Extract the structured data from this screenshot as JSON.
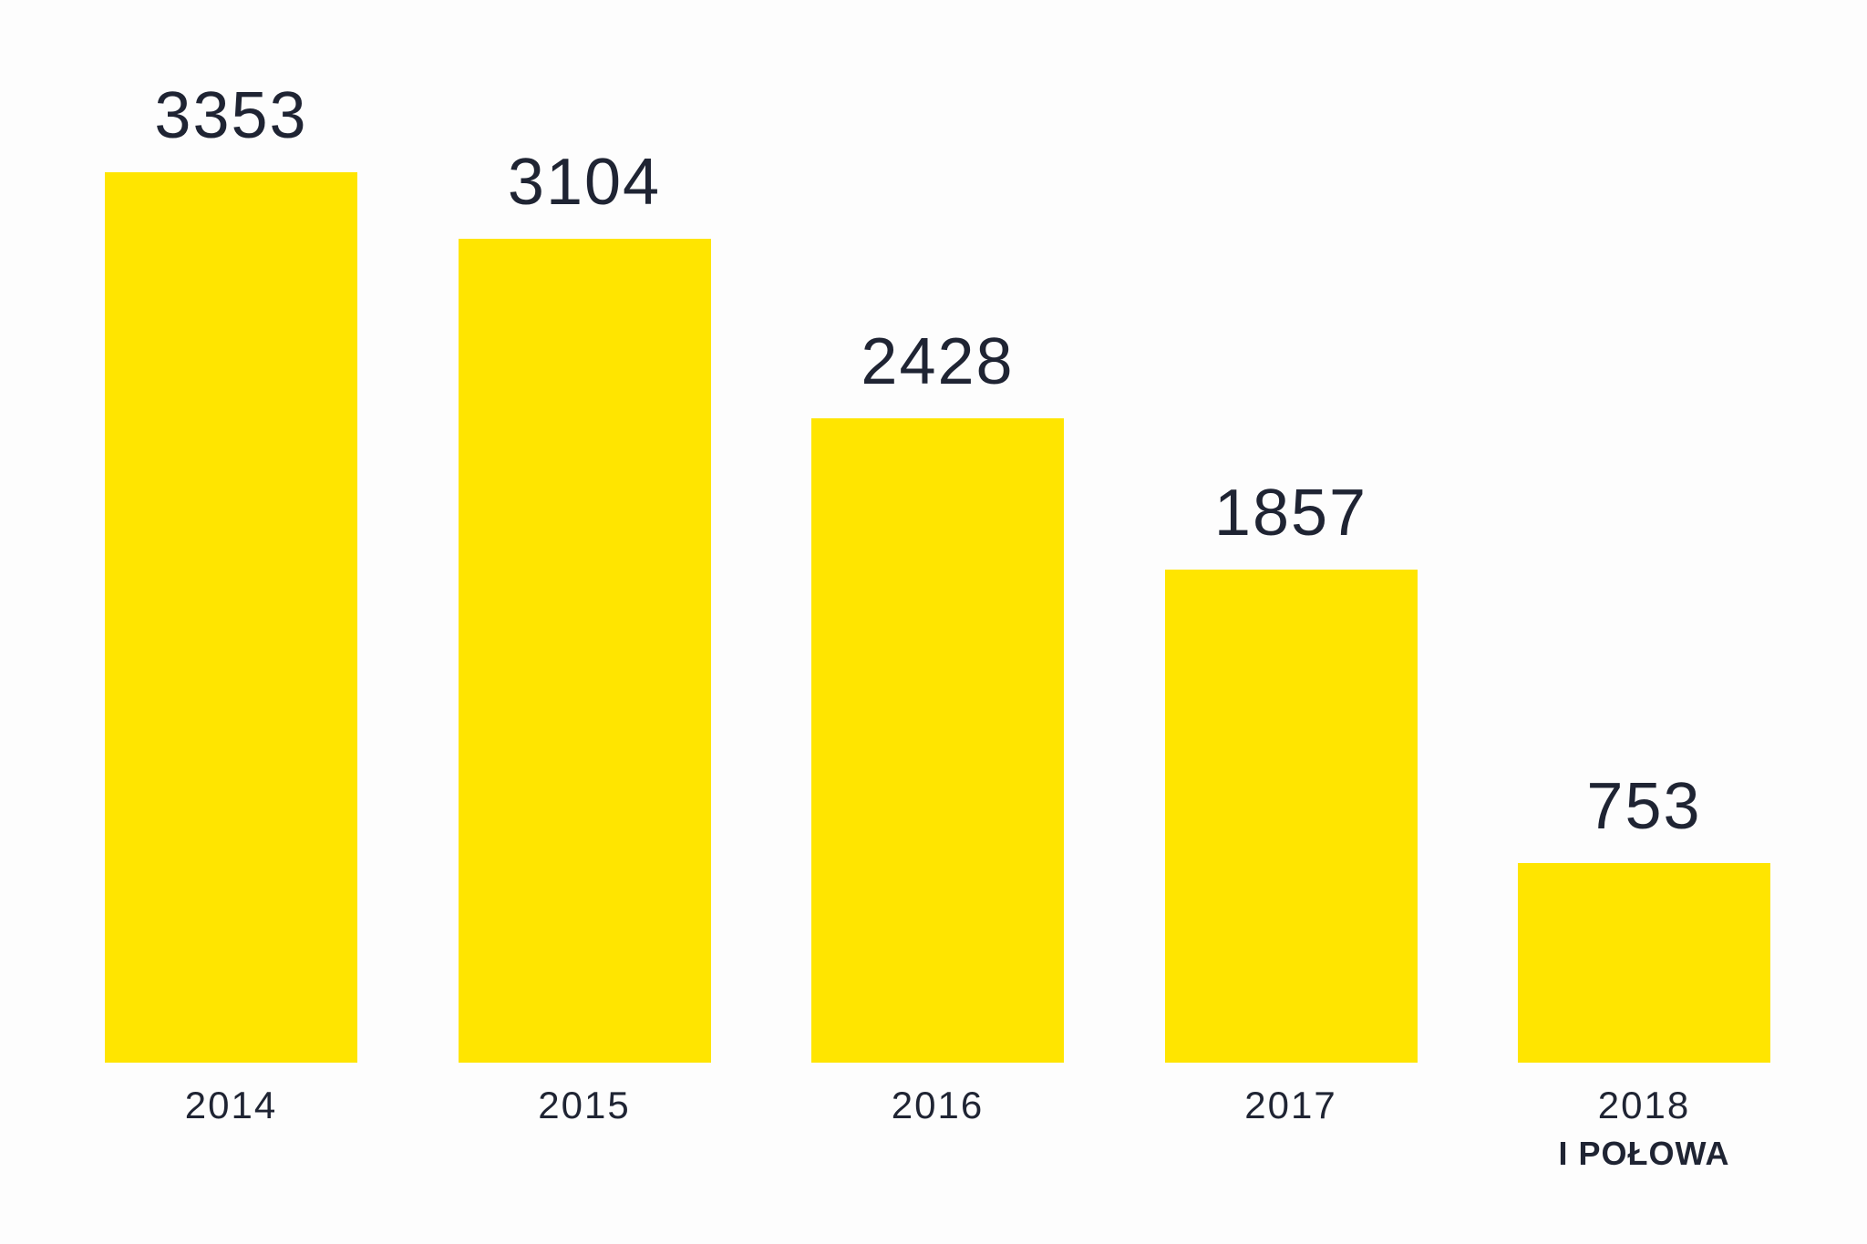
{
  "page": {
    "background": "#FDFDFD"
  },
  "chart_data": {
    "type": "bar",
    "categories": [
      "2014",
      "2015",
      "2016",
      "2017",
      "2018"
    ],
    "category_sublabels": [
      "",
      "",
      "",
      "",
      "I POŁOWA"
    ],
    "values": [
      3353,
      3104,
      2428,
      1857,
      753
    ],
    "value_labels": [
      "3353",
      "3104",
      "2428",
      "1857",
      "753"
    ],
    "ylim": [
      0,
      3353
    ],
    "bar_color": "#FFE500",
    "text_color": "#1F2433",
    "grid": false,
    "legend": false,
    "orientation": "vertical",
    "value_label_position": "above-bar",
    "category_label_position": "below-bar"
  }
}
